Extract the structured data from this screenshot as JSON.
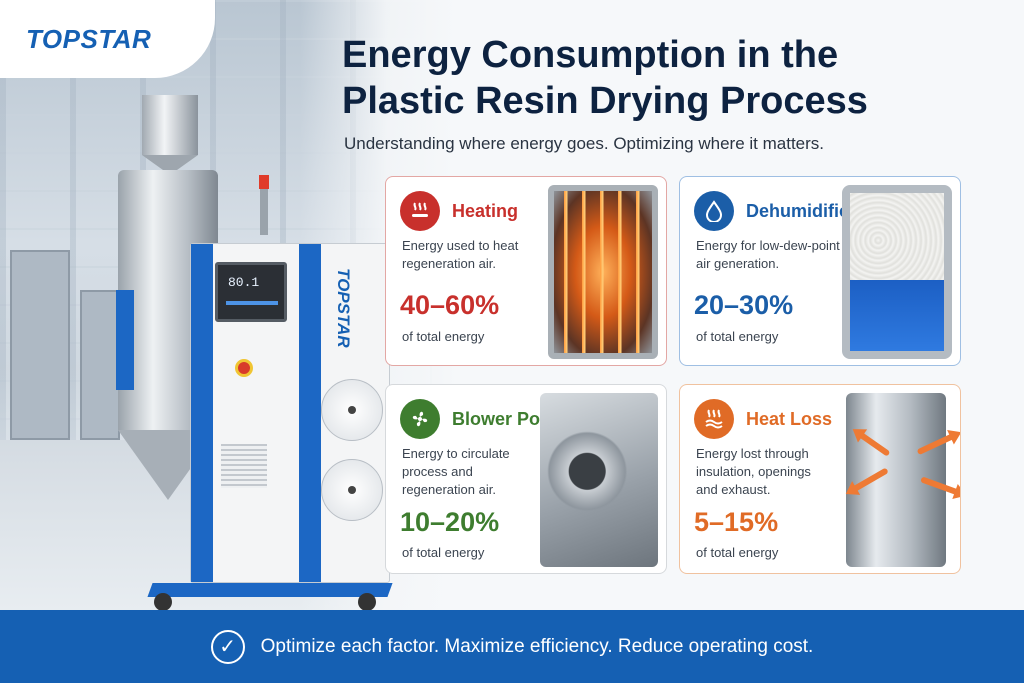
{
  "brand": {
    "logo": "TOPSTAR",
    "machine_label": "TOPSTAR",
    "screen_value": "80.1"
  },
  "header": {
    "title_line1": "Energy Consumption in the",
    "title_line2": "Plastic Resin Drying Process",
    "subtitle": "Understanding where energy goes. Optimizing where it matters."
  },
  "cards": [
    {
      "title": "Heating",
      "icon": "heating-icon",
      "description": "Energy used to heat regeneration air.",
      "value": "40–60%",
      "unit": "of total energy",
      "color": "#c8302c",
      "border": "#e3a7a4"
    },
    {
      "title": "Dehumidification",
      "icon": "water-drop-icon",
      "description": "Energy for low-dew-point air generation.",
      "value": "20–30%",
      "unit": "of total energy",
      "color": "#1b5ea8",
      "border": "#9fbfe3"
    },
    {
      "title": "Blower Power",
      "icon": "fan-icon",
      "description": "Energy to circulate process and regeneration air.",
      "value": "10–20%",
      "unit": "of total energy",
      "color": "#3e7d2f",
      "border": "#d6d9dc"
    },
    {
      "title": "Heat Loss",
      "icon": "heat-loss-icon",
      "description": "Energy lost through insulation, openings and exhaust.",
      "value": "5–15%",
      "unit": "of total energy",
      "color": "#e06b26",
      "border": "#f0c29f"
    }
  ],
  "footer": {
    "text": "Optimize each factor. Maximize efficiency. Reduce operating cost.",
    "icon": "check-circle-icon"
  },
  "colors": {
    "primary_blue": "#1560b3",
    "heading": "#0d2240"
  }
}
